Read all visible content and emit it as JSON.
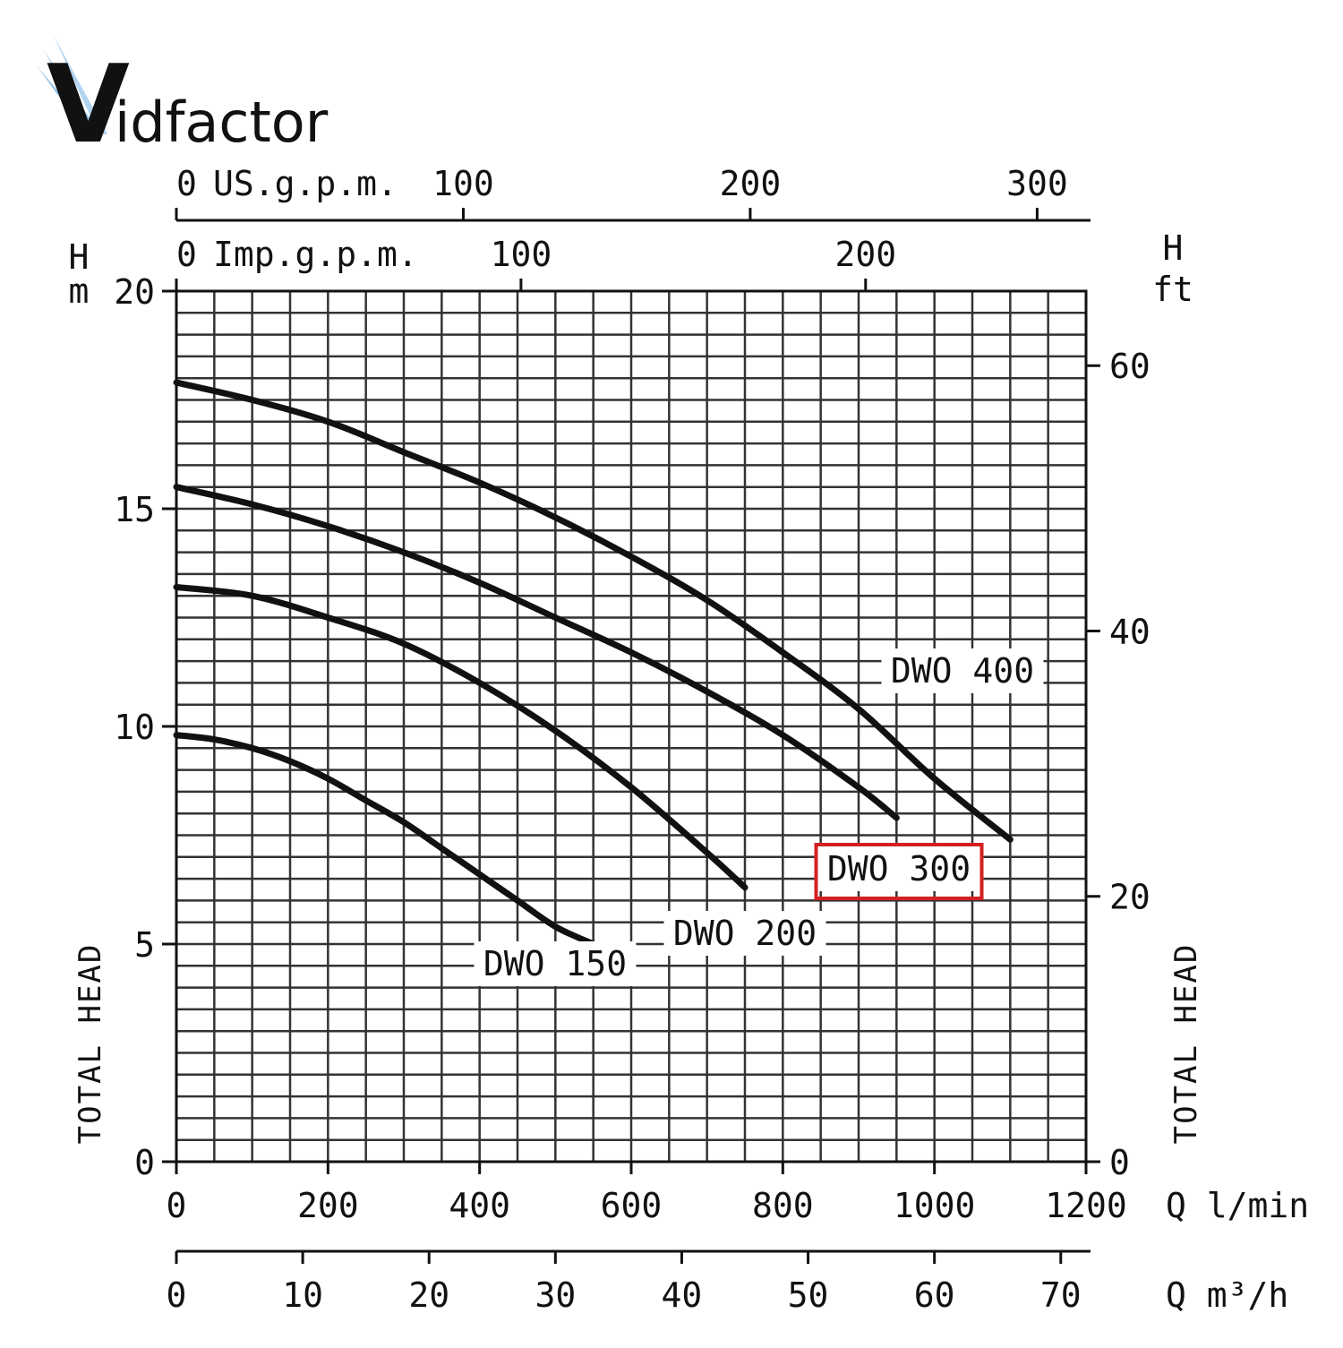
{
  "brand": {
    "name": "Vidfactor",
    "logo_glyph": "V",
    "logo_text": "idfactor",
    "colors": {
      "primary": "#1e73c8",
      "secondary": "#f0a800"
    }
  },
  "chart_data": {
    "type": "line",
    "title": "",
    "x": {
      "label": "Q l/min",
      "range": [
        0,
        1200
      ],
      "ticks": [
        0,
        200,
        400,
        600,
        800,
        1000,
        1200
      ]
    },
    "x_secondary": {
      "label": "Q m³/h",
      "range": [
        0,
        72
      ],
      "ticks": [
        0,
        10,
        20,
        30,
        40,
        50,
        60,
        70
      ]
    },
    "x_top_us": {
      "label": "US.g.p.m.",
      "ticks": [
        0,
        100,
        200,
        300
      ],
      "l_per_min_per_unit": 3.785
    },
    "x_top_imp": {
      "label": "Imp.g.p.m.",
      "ticks": [
        0,
        100,
        200
      ],
      "l_per_min_per_unit": 4.546
    },
    "y": {
      "label_top": "H",
      "unit": "m",
      "title": "TOTAL HEAD",
      "range": [
        0,
        20
      ],
      "ticks": [
        0,
        5,
        10,
        15,
        20
      ]
    },
    "y_right": {
      "label_top": "H",
      "unit": "ft",
      "title": "TOTAL HEAD",
      "ticks": [
        0,
        20,
        40,
        60
      ],
      "ft_per_m": 3.281
    },
    "grid": true,
    "series": [
      {
        "name": "DWO 150",
        "x": [
          0,
          50,
          100,
          150,
          200,
          250,
          300,
          350,
          400,
          450,
          500,
          550
        ],
        "values": [
          9.8,
          9.7,
          9.5,
          9.2,
          8.8,
          8.3,
          7.8,
          7.2,
          6.6,
          6.0,
          5.4,
          5.0
        ]
      },
      {
        "name": "DWO 200",
        "x": [
          0,
          100,
          200,
          300,
          400,
          500,
          600,
          700,
          750
        ],
        "values": [
          13.2,
          13.0,
          12.5,
          11.9,
          11.0,
          9.9,
          8.6,
          7.1,
          6.3
        ]
      },
      {
        "name": "DWO 300",
        "x": [
          0,
          100,
          200,
          300,
          400,
          500,
          600,
          700,
          800,
          900,
          950
        ],
        "values": [
          15.5,
          15.1,
          14.6,
          14.0,
          13.3,
          12.5,
          11.7,
          10.8,
          9.8,
          8.6,
          7.9
        ],
        "highlighted": true
      },
      {
        "name": "DWO 400",
        "x": [
          0,
          100,
          200,
          300,
          400,
          500,
          600,
          700,
          800,
          900,
          1000,
          1100
        ],
        "values": [
          17.9,
          17.5,
          17.0,
          16.3,
          15.6,
          14.8,
          13.9,
          12.9,
          11.7,
          10.4,
          8.8,
          7.4
        ]
      }
    ],
    "highlight_color": "#d42020"
  }
}
